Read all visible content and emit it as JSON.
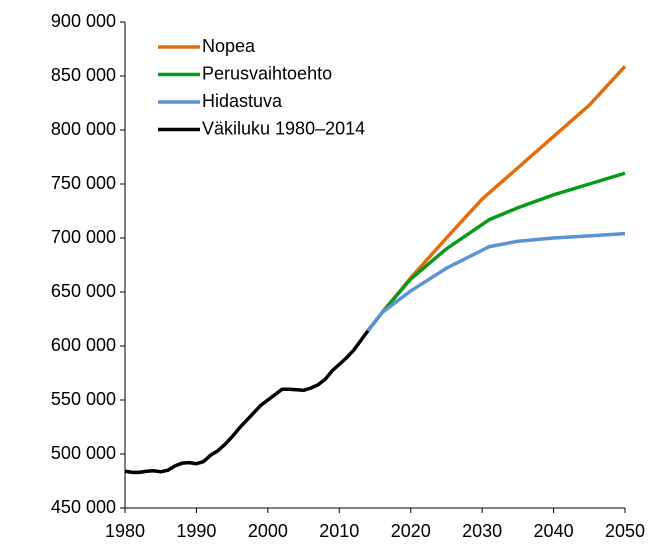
{
  "chart_data": {
    "type": "line",
    "xlim": [
      1980,
      2050
    ],
    "xticks": [
      1980,
      1990,
      2000,
      2010,
      2020,
      2030,
      2040,
      2050
    ],
    "ylim": [
      450000,
      900000
    ],
    "yticks": [
      {
        "value": 450000,
        "label": "450 000"
      },
      {
        "value": 500000,
        "label": "500 000"
      },
      {
        "value": 550000,
        "label": "550 000"
      },
      {
        "value": 600000,
        "label": "600 000"
      },
      {
        "value": 650000,
        "label": "650 000"
      },
      {
        "value": 700000,
        "label": "700 000"
      },
      {
        "value": 750000,
        "label": "750 000"
      },
      {
        "value": 800000,
        "label": "800 000"
      },
      {
        "value": 850000,
        "label": "850 000"
      },
      {
        "value": 900000,
        "label": "900 000"
      }
    ],
    "legend": "top-left",
    "series": [
      {
        "name": "Nopea",
        "color": "#e46c0a",
        "x": [
          2014,
          2016,
          2020,
          2025,
          2030,
          2035,
          2040,
          2045,
          2050
        ],
        "values": [
          614000,
          631000,
          663000,
          700000,
          736000,
          765000,
          794000,
          823000,
          859000
        ]
      },
      {
        "name": "Perusvaihtoehto",
        "color": "#0a9a1a",
        "x": [
          2014,
          2016,
          2020,
          2025,
          2031,
          2035,
          2040,
          2045,
          2050
        ],
        "values": [
          614000,
          631000,
          662000,
          690000,
          717000,
          728000,
          740000,
          750000,
          760000
        ]
      },
      {
        "name": "Hidastuva",
        "color": "#5b93d3",
        "x": [
          2014,
          2016,
          2020,
          2025,
          2031,
          2035,
          2040,
          2045,
          2050
        ],
        "values": [
          614000,
          631000,
          651000,
          672000,
          692000,
          697000,
          700000,
          702000,
          704000
        ]
      },
      {
        "name": "Väkiluku 1980–2014",
        "color": "#000000",
        "x": [
          1980,
          1981,
          1982,
          1983,
          1984,
          1985,
          1986,
          1987,
          1988,
          1989,
          1990,
          1991,
          1992,
          1993,
          1994,
          1995,
          1996,
          1997,
          1998,
          1999,
          2000,
          2001,
          2002,
          2003,
          2004,
          2005,
          2006,
          2007,
          2008,
          2009,
          2010,
          2011,
          2012,
          2013,
          2014
        ],
        "values": [
          484000,
          483000,
          483000,
          484000,
          484500,
          483500,
          485000,
          489000,
          491500,
          492000,
          491000,
          493000,
          499000,
          503000,
          509000,
          516000,
          524000,
          531000,
          538000,
          545000,
          550000,
          555000,
          560000,
          560000,
          559500,
          559000,
          561000,
          564000,
          569000,
          577000,
          583000,
          589000,
          596000,
          605000,
          614000
        ]
      }
    ]
  }
}
